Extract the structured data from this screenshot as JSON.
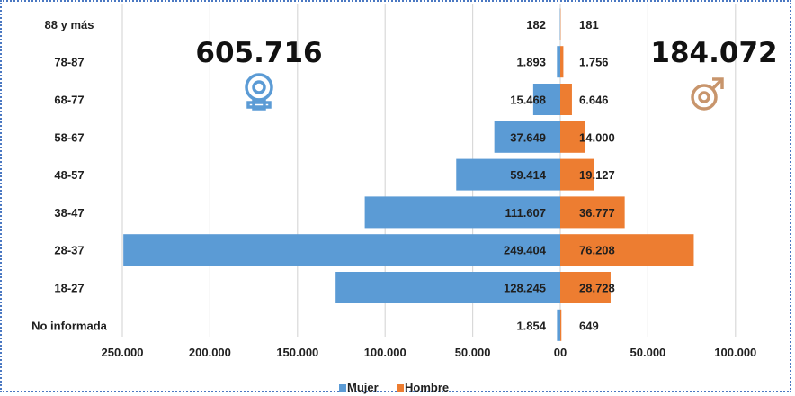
{
  "chart_data": {
    "type": "bar",
    "orientation": "horizontal-pyramid",
    "categories": [
      "88 y más",
      "78-87",
      "68-77",
      "58-67",
      "48-57",
      "38-47",
      "28-37",
      "18-27",
      "No informada"
    ],
    "series": [
      {
        "name": "Mujer",
        "color": "#5b9bd5",
        "values": [
          182,
          1893,
          15468,
          37649,
          59414,
          111607,
          249404,
          128245,
          1854
        ],
        "labels": [
          "182",
          "1.893",
          "15.468",
          "37.649",
          "59.414",
          "111.607",
          "249.404",
          "128.245",
          "1.854"
        ]
      },
      {
        "name": "Hombre",
        "color": "#ed7d31",
        "values": [
          181,
          1756,
          6646,
          14000,
          19127,
          36777,
          76208,
          28728,
          649
        ],
        "labels": [
          "181",
          "1.756",
          "6.646",
          "14.000",
          "19.127",
          "36.777",
          "76.208",
          "28.728",
          "649"
        ]
      }
    ],
    "x_ticks": [
      {
        "value": -250000,
        "label": "250.000"
      },
      {
        "value": -200000,
        "label": "200.000"
      },
      {
        "value": -150000,
        "label": "150.000"
      },
      {
        "value": -100000,
        "label": "100.000"
      },
      {
        "value": -50000,
        "label": "50.000"
      },
      {
        "value": 0,
        "label": "00"
      },
      {
        "value": 50000,
        "label": "50.000"
      },
      {
        "value": 100000,
        "label": "100.000"
      }
    ],
    "xlim": [
      -250000,
      100000
    ],
    "grid": true,
    "legend": "bottom"
  },
  "annotations": {
    "female_total": "605.716",
    "male_total": "184.072",
    "female_icon": "female-symbol-icon",
    "male_icon": "male-symbol-icon",
    "female_icon_color": "#5b9bd5",
    "male_icon_color": "#c8956c"
  },
  "legend": {
    "items": [
      {
        "label": "Mujer",
        "color": "#5b9bd5"
      },
      {
        "label": "Hombre",
        "color": "#ed7d31"
      }
    ]
  },
  "style": {
    "gridline_color": "#d9d9d9"
  }
}
